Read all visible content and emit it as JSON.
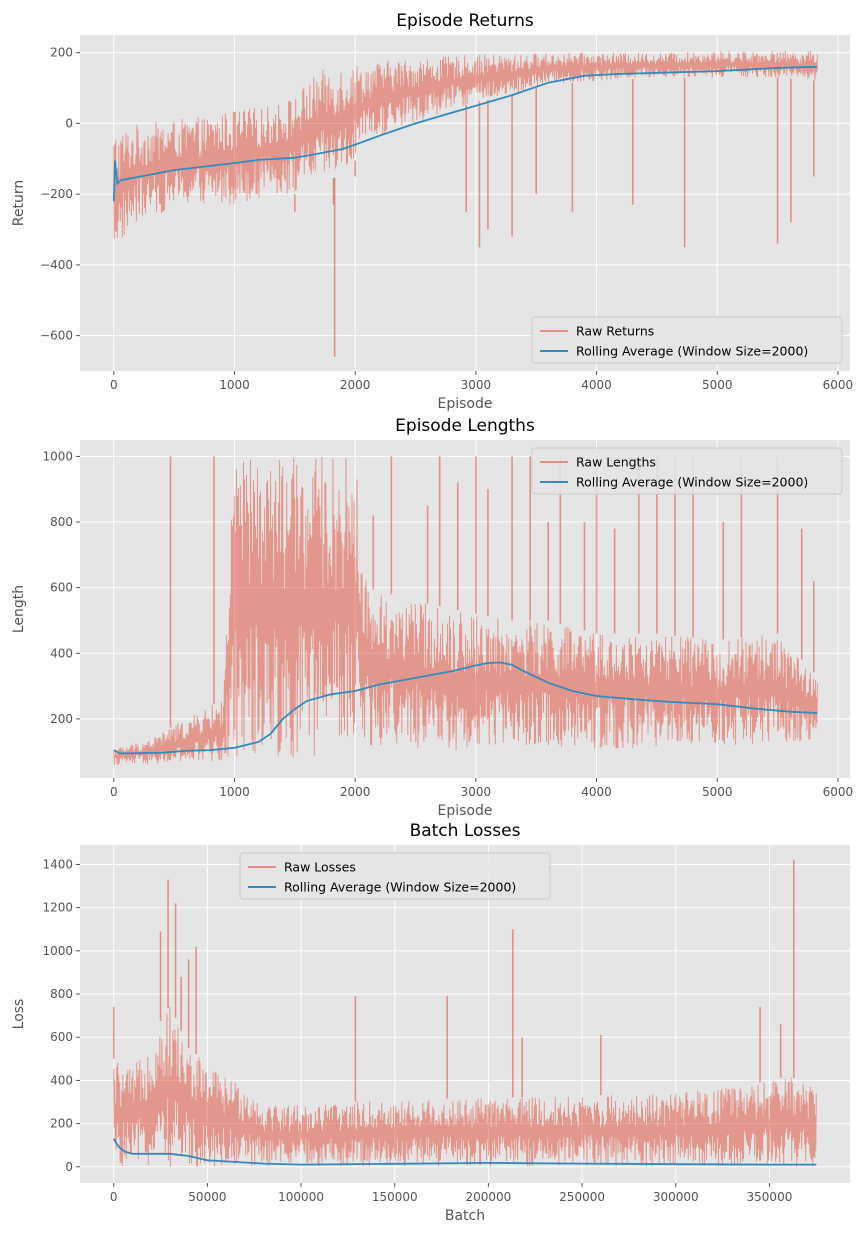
{
  "colors": {
    "raw": "#E24A33",
    "rolling": "#348ABD",
    "panel_bg": "#E5E5E5",
    "grid": "#FFFFFF"
  },
  "chart_data": [
    {
      "type": "line",
      "title": "Episode Returns",
      "xlabel": "Episode",
      "ylabel": "Return",
      "xlim": [
        -280,
        6100
      ],
      "ylim": [
        -700,
        250
      ],
      "xticks": [
        0,
        1000,
        2000,
        3000,
        4000,
        5000,
        6000
      ],
      "yticks": [
        -600,
        -400,
        -200,
        0,
        200
      ],
      "tick_labels_x": [
        "0",
        "1000",
        "2000",
        "3000",
        "4000",
        "5000",
        "6000"
      ],
      "tick_labels_y": [
        "−600",
        "−400",
        "−200",
        "0",
        "200"
      ],
      "grid": true,
      "legend_position": "lower-right",
      "series": [
        {
          "name": "Raw Returns",
          "style": "band",
          "x": [
            0,
            200,
            500,
            800,
            1000,
            1300,
            1500,
            1700,
            1900,
            2100,
            2300,
            2500,
            2800,
            3000,
            3300,
            3600,
            4000,
            4500,
            5000,
            5500,
            5830
          ],
          "lower": [
            -360,
            -280,
            -240,
            -230,
            -230,
            -200,
            -200,
            -160,
            -150,
            -60,
            -20,
            0,
            40,
            60,
            80,
            110,
            120,
            130,
            130,
            130,
            120
          ],
          "upper": [
            -20,
            0,
            10,
            20,
            40,
            50,
            80,
            150,
            170,
            170,
            180,
            185,
            190,
            195,
            195,
            200,
            200,
            200,
            205,
            205,
            205
          ],
          "spikes": [
            {
              "x": 1830,
              "y": -660
            },
            {
              "x": 3030,
              "y": -350
            },
            {
              "x": 3300,
              "y": -320
            },
            {
              "x": 2920,
              "y": -250
            },
            {
              "x": 3100,
              "y": -300
            },
            {
              "x": 3500,
              "y": -200
            },
            {
              "x": 3800,
              "y": -250
            },
            {
              "x": 4300,
              "y": -230
            },
            {
              "x": 4730,
              "y": -350
            },
            {
              "x": 5500,
              "y": -340
            },
            {
              "x": 5610,
              "y": -280
            },
            {
              "x": 5800,
              "y": -150
            },
            {
              "x": 2000,
              "y": -150
            },
            {
              "x": 1500,
              "y": -250
            },
            {
              "x": 1820,
              "y": -230
            }
          ]
        },
        {
          "name": "Rolling Average (Window Size=2000)",
          "style": "line",
          "x": [
            0,
            10,
            30,
            60,
            100,
            300,
            500,
            800,
            1000,
            1200,
            1500,
            1700,
            1900,
            2000,
            2200,
            2500,
            2800,
            3000,
            3300,
            3600,
            3900,
            4200,
            4500,
            5000,
            5500,
            5830
          ],
          "y": [
            -220,
            -105,
            -170,
            -160,
            -158,
            -145,
            -132,
            -120,
            -112,
            -103,
            -97,
            -85,
            -72,
            -60,
            -35,
            0,
            30,
            50,
            80,
            115,
            135,
            140,
            143,
            148,
            157,
            160
          ]
        }
      ]
    },
    {
      "type": "line",
      "title": "Episode Lengths",
      "xlabel": "Episode",
      "ylabel": "Length",
      "xlim": [
        -280,
        6100
      ],
      "ylim": [
        20,
        1050
      ],
      "xticks": [
        0,
        1000,
        2000,
        3000,
        4000,
        5000,
        6000
      ],
      "yticks": [
        200,
        400,
        600,
        800,
        1000
      ],
      "tick_labels_x": [
        "0",
        "1000",
        "2000",
        "3000",
        "4000",
        "5000",
        "6000"
      ],
      "tick_labels_y": [
        "200",
        "400",
        "600",
        "800",
        "1000"
      ],
      "grid": true,
      "legend_position": "upper-right",
      "series": [
        {
          "name": "Raw Lengths",
          "style": "band",
          "x": [
            0,
            300,
            600,
            900,
            1000,
            1100,
            1500,
            1800,
            2000,
            2100,
            2500,
            3000,
            3300,
            3600,
            4000,
            4500,
            5000,
            5500,
            5830
          ],
          "lower": [
            60,
            60,
            60,
            70,
            80,
            90,
            80,
            90,
            100,
            120,
            110,
            100,
            110,
            110,
            110,
            110,
            120,
            120,
            140
          ],
          "upper": [
            110,
            140,
            200,
            260,
            1000,
            1000,
            1000,
            1000,
            1000,
            600,
            560,
            520,
            500,
            500,
            460,
            460,
            440,
            460,
            330
          ],
          "spikes": [
            {
              "x": 470,
              "y": 1000
            },
            {
              "x": 830,
              "y": 1000
            },
            {
              "x": 2150,
              "y": 820
            },
            {
              "x": 2300,
              "y": 1000
            },
            {
              "x": 2600,
              "y": 850
            },
            {
              "x": 2700,
              "y": 1000
            },
            {
              "x": 2850,
              "y": 920
            },
            {
              "x": 3000,
              "y": 1000
            },
            {
              "x": 3100,
              "y": 900
            },
            {
              "x": 3300,
              "y": 1000
            },
            {
              "x": 3450,
              "y": 1000
            },
            {
              "x": 3600,
              "y": 800
            },
            {
              "x": 3700,
              "y": 1000
            },
            {
              "x": 3900,
              "y": 800
            },
            {
              "x": 4000,
              "y": 1000
            },
            {
              "x": 4150,
              "y": 780
            },
            {
              "x": 4350,
              "y": 1000
            },
            {
              "x": 4500,
              "y": 1000
            },
            {
              "x": 4650,
              "y": 1000
            },
            {
              "x": 4800,
              "y": 1000
            },
            {
              "x": 5050,
              "y": 800
            },
            {
              "x": 5200,
              "y": 1000
            },
            {
              "x": 5500,
              "y": 1000
            },
            {
              "x": 5700,
              "y": 780
            },
            {
              "x": 5800,
              "y": 620
            }
          ]
        },
        {
          "name": "Rolling Average (Window Size=2000)",
          "style": "line",
          "x": [
            0,
            50,
            100,
            400,
            600,
            800,
            1000,
            1200,
            1300,
            1400,
            1500,
            1600,
            1700,
            1800,
            2000,
            2200,
            2500,
            2800,
            3000,
            3100,
            3200,
            3300,
            3400,
            3600,
            3800,
            4000,
            4300,
            4600,
            5000,
            5300,
            5600,
            5830
          ],
          "y": [
            105,
            95,
            95,
            97,
            103,
            105,
            112,
            130,
            155,
            200,
            230,
            255,
            265,
            275,
            285,
            305,
            325,
            345,
            363,
            370,
            372,
            365,
            345,
            310,
            285,
            270,
            260,
            252,
            245,
            232,
            222,
            218
          ]
        }
      ]
    },
    {
      "type": "line",
      "title": "Batch Losses",
      "xlabel": "Batch",
      "ylabel": "Loss",
      "xlim": [
        -18000,
        393000
      ],
      "ylim": [
        -75,
        1490
      ],
      "xticks": [
        0,
        50000,
        100000,
        150000,
        200000,
        250000,
        300000,
        350000
      ],
      "yticks": [
        0,
        200,
        400,
        600,
        800,
        1000,
        1200,
        1400
      ],
      "tick_labels_x": [
        "0",
        "50000",
        "100000",
        "150000",
        "200000",
        "250000",
        "300000",
        "350000"
      ],
      "tick_labels_y": [
        "0",
        "200",
        "400",
        "600",
        "800",
        "1000",
        "1200",
        "1400"
      ],
      "grid": true,
      "legend_position": "upper-center",
      "series": [
        {
          "name": "Raw Losses",
          "style": "band",
          "x": [
            0,
            10000,
            20000,
            30000,
            40000,
            50000,
            60000,
            70000,
            80000,
            100000,
            150000,
            200000,
            250000,
            300000,
            340000,
            360000,
            375000
          ],
          "lower": [
            0,
            0,
            0,
            0,
            0,
            0,
            0,
            0,
            0,
            0,
            0,
            0,
            0,
            0,
            0,
            0,
            0
          ],
          "upper": [
            500,
            450,
            600,
            750,
            550,
            480,
            420,
            380,
            300,
            290,
            310,
            320,
            330,
            340,
            380,
            420,
            380
          ],
          "spikes": [
            {
              "x": 0,
              "y": 740
            },
            {
              "x": 25000,
              "y": 1090
            },
            {
              "x": 29000,
              "y": 1330
            },
            {
              "x": 33000,
              "y": 1220
            },
            {
              "x": 36000,
              "y": 880
            },
            {
              "x": 44000,
              "y": 1020
            },
            {
              "x": 40000,
              "y": 960
            },
            {
              "x": 129000,
              "y": 790
            },
            {
              "x": 178000,
              "y": 790
            },
            {
              "x": 213000,
              "y": 1100
            },
            {
              "x": 218000,
              "y": 600
            },
            {
              "x": 260000,
              "y": 610
            },
            {
              "x": 345000,
              "y": 740
            },
            {
              "x": 363000,
              "y": 1420
            },
            {
              "x": 356000,
              "y": 660
            }
          ]
        },
        {
          "name": "Rolling Average (Window Size=2000)",
          "style": "line",
          "x": [
            0,
            1000,
            3000,
            6000,
            10000,
            20000,
            30000,
            40000,
            50000,
            60000,
            80000,
            100000,
            150000,
            200000,
            250000,
            300000,
            350000,
            375000
          ],
          "y": [
            130,
            115,
            90,
            70,
            60,
            60,
            60,
            50,
            30,
            25,
            15,
            10,
            14,
            18,
            15,
            12,
            10,
            10
          ]
        }
      ]
    }
  ]
}
